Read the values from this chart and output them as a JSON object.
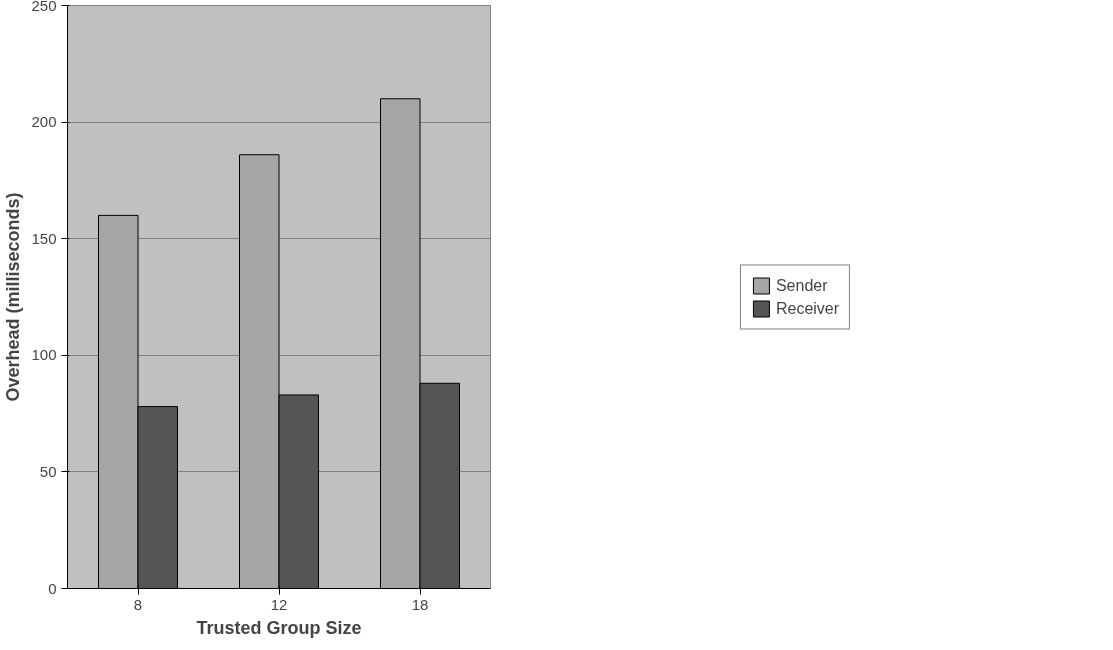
{
  "chart_data": {
    "type": "bar",
    "xlabel": "Trusted Group Size",
    "ylabel": "Overhead (milliseconds)",
    "categories": [
      "8",
      "12",
      "18"
    ],
    "series": [
      {
        "name": "Sender",
        "color": "#a6a6a6",
        "values": [
          160,
          186,
          210
        ]
      },
      {
        "name": "Receiver",
        "color": "#555555",
        "values": [
          78,
          83,
          88
        ]
      }
    ],
    "ylim": [
      0,
      250
    ],
    "yticks": [
      0,
      50,
      100,
      150,
      200,
      250
    ],
    "grid": "y",
    "legend": "right"
  }
}
